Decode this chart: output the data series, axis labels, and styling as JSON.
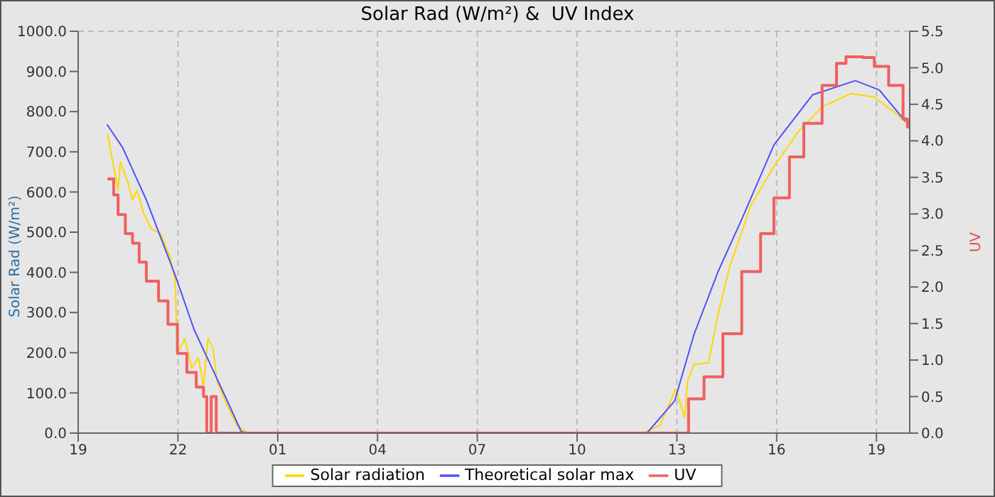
{
  "chart_data": {
    "type": "line",
    "title": "Solar Rad (W/m²) &  UV Index",
    "ylabel": "Solar Rad (W/m²)",
    "y2label": "UV",
    "xlim": [
      "--01-01T19:00",
      "--01-02T20:00"
    ],
    "xticks": [
      {
        "value": "--01-01T19:00",
        "label": "19"
      },
      {
        "value": "--01-01T22:00",
        "label": "22"
      },
      {
        "value": "--01-02T01:00",
        "label": "01"
      },
      {
        "value": "--01-02T04:00",
        "label": "04"
      },
      {
        "value": "--01-02T07:00",
        "label": "07"
      },
      {
        "value": "--01-02T10:00",
        "label": "10"
      },
      {
        "value": "--01-02T13:00",
        "label": "13"
      },
      {
        "value": "--01-02T16:00",
        "label": "16"
      },
      {
        "value": "--01-02T19:00",
        "label": "19"
      }
    ],
    "ylim": [
      0,
      1000
    ],
    "yticks": [
      {
        "value": 0,
        "label": "0.0"
      },
      {
        "value": 100,
        "label": "100.0"
      },
      {
        "value": 200,
        "label": "200.0"
      },
      {
        "value": 300,
        "label": "300.0"
      },
      {
        "value": 400,
        "label": "400.0"
      },
      {
        "value": 500,
        "label": "500.0"
      },
      {
        "value": 600,
        "label": "600.0"
      },
      {
        "value": 700,
        "label": "700.0"
      },
      {
        "value": 800,
        "label": "800.0"
      },
      {
        "value": 900,
        "label": "900.0"
      },
      {
        "value": 1000,
        "label": "1000.0"
      }
    ],
    "y2lim": [
      0,
      5.5
    ],
    "y2ticks": [
      {
        "value": 0,
        "label": "0.0"
      },
      0.5,
      {
        "value": 1,
        "label": "1.0"
      },
      1.5,
      {
        "value": 2,
        "label": "2.0"
      },
      2.5,
      {
        "value": 3,
        "label": "3.0"
      },
      3.5,
      {
        "value": 4,
        "label": "4.0"
      },
      4.5,
      {
        "value": 5,
        "label": "5.0"
      },
      5.5
    ],
    "grid": true,
    "legend": "bottom",
    "marker": "none",
    "line_style": "solid",
    "series": [
      {
        "name": "Solar radiation",
        "color": "#ffd700",
        "x": [
          "--01-01T19:53",
          "--01-01T19:59",
          "--01-01T20:12",
          "--01-01T20:16",
          "--01-01T20:29",
          "--01-01T20:38",
          "--01-01T20:46",
          "--01-01T20:59",
          "--01-01T21:12",
          "--01-01T21:29",
          "--01-01T21:46",
          "--01-01T21:55",
          "--01-01T21:59",
          "--01-01T22:12",
          "--01-01T22:25",
          "--01-01T22:37",
          "--01-01T22:46",
          "--01-01T22:54",
          "--01-01T23:03",
          "--01-01T23:11",
          "--01-01T23:29",
          "--01-01T23:46",
          "--01-02T00:07",
          "--01-02T12:00",
          "--01-02T12:30",
          "--01-02T12:58",
          "--01-02T13:14",
          "--01-02T13:19",
          "--01-02T13:31",
          "--01-02T13:57",
          "--01-02T14:14",
          "--01-02T14:35",
          "--01-02T15:14",
          "--01-02T15:55",
          "--01-02T16:40",
          "--01-02T17:22",
          "--01-02T18:14",
          "--01-02T18:56",
          "--01-02T19:31",
          "--01-02T20:00"
        ],
        "values": [
          746,
          699,
          604,
          675,
          627,
          580,
          604,
          544,
          508,
          496,
          437,
          378,
          199,
          235,
          163,
          187,
          115,
          235,
          211,
          127,
          68,
          20,
          0,
          0,
          20,
          110,
          39,
          128,
          171,
          175,
          294,
          413,
          568,
          663,
          752,
          812,
          845,
          836,
          800,
          764
        ]
      },
      {
        "name": "Theoretical solar max",
        "color": "#5050ff",
        "x": [
          "--01-01T19:52",
          "--01-01T20:20",
          "--01-01T21:03",
          "--01-01T21:55",
          "--01-01T22:29",
          "--01-01T22:57",
          "--01-01T23:29",
          "--01-01T23:54",
          "--01-02T00:06",
          "--01-02T12:06",
          "--01-02T12:56",
          "--01-02T13:31",
          "--01-02T14:14",
          "--01-02T14:57",
          "--01-02T15:55",
          "--01-02T17:05",
          "--01-02T18:22",
          "--01-02T19:05",
          "--01-02T19:52"
        ],
        "values": [
          768,
          711,
          580,
          393,
          258,
          175,
          80,
          4,
          0,
          0,
          80,
          246,
          401,
          532,
          717,
          842,
          877,
          854,
          776
        ]
      },
      {
        "name": "UV",
        "color": "#f06060",
        "type": "step",
        "axis": "y2",
        "x": [
          "--01-01T19:53",
          "--01-01T20:04",
          "--01-01T20:12",
          "--01-01T20:25",
          "--01-01T20:38",
          "--01-01T20:50",
          "--01-01T21:03",
          "--01-01T21:25",
          "--01-01T21:42",
          "--01-01T21:59",
          "--01-01T22:16",
          "--01-01T22:33",
          "--01-01T22:46",
          "--01-01T22:52",
          "--01-01T23:00",
          "--01-01T23:09",
          "--01-02T13:18",
          "--01-02T13:21",
          "--01-02T13:49",
          "--01-02T14:23",
          "--01-02T14:57",
          "--01-02T15:31",
          "--01-02T15:55",
          "--01-02T16:23",
          "--01-02T16:49",
          "--01-02T17:22",
          "--01-02T17:48",
          "--01-02T18:05",
          "--01-02T18:35",
          "--01-02T18:56",
          "--01-02T19:22",
          "--01-02T19:48",
          "--01-02T19:56"
        ],
        "values": [
          3.48,
          3.26,
          2.99,
          2.73,
          2.6,
          2.34,
          2.08,
          1.81,
          1.49,
          1.09,
          0.83,
          0.63,
          0.5,
          0,
          0.5,
          0,
          0,
          0.47,
          0.77,
          1.36,
          2.21,
          2.73,
          3.22,
          3.78,
          4.24,
          4.76,
          5.06,
          5.15,
          5.14,
          5.02,
          4.76,
          4.3,
          4.17
        ]
      }
    ]
  }
}
